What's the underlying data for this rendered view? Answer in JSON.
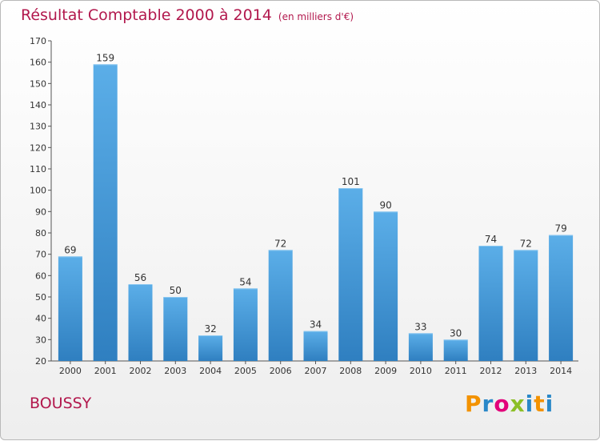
{
  "header": {
    "title": "Résultat Comptable 2000 à 2014",
    "unit_note": "(en milliers d'€)"
  },
  "footer": {
    "commune": "BOUSSY",
    "logo_text": "Proxiti"
  },
  "colors": {
    "title": "#b2184d",
    "bar_top": "#5baee8",
    "bar_bottom": "#2f7fc0",
    "axis": "#555555"
  },
  "chart_data": {
    "type": "bar",
    "title": "Résultat Comptable 2000 à 2014",
    "xlabel": "",
    "ylabel": "",
    "ylim": [
      20,
      170
    ],
    "yticks": [
      20,
      30,
      40,
      50,
      60,
      70,
      80,
      90,
      100,
      110,
      120,
      130,
      140,
      150,
      160,
      170
    ],
    "categories": [
      "2000",
      "2001",
      "2002",
      "2003",
      "2004",
      "2005",
      "2006",
      "2007",
      "2008",
      "2009",
      "2010",
      "2011",
      "2012",
      "2013",
      "2014"
    ],
    "values": [
      69,
      159,
      56,
      50,
      32,
      54,
      72,
      34,
      101,
      90,
      33,
      30,
      74,
      72,
      79
    ],
    "grid": false,
    "legend": "none"
  }
}
